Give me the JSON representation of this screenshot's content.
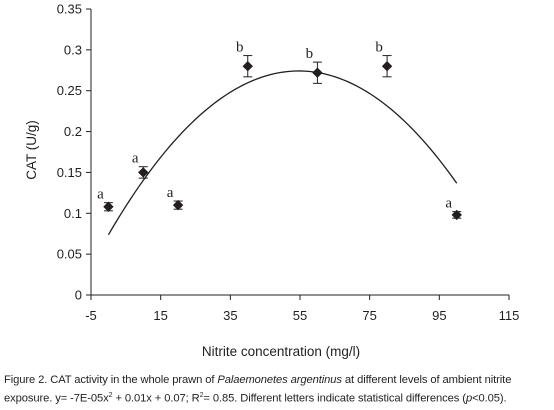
{
  "chart_data": {
    "type": "scatter",
    "xlabel": "Nitrite concentration (mg/l)",
    "ylabel": "CAT (U/g)",
    "xlim": [
      -5,
      115
    ],
    "ylim": [
      0,
      0.35
    ],
    "xticks": [
      "-5",
      "15",
      "35",
      "55",
      "75",
      "95",
      "115"
    ],
    "yticks": [
      "0",
      "0.05",
      "0.1",
      "0.15",
      "0.2",
      "0.25",
      "0.3",
      "0.35"
    ],
    "points": [
      {
        "x": 0,
        "y": 0.108,
        "err": 0.005,
        "label": "a"
      },
      {
        "x": 10,
        "y": 0.15,
        "err": 0.007,
        "label": "a"
      },
      {
        "x": 20,
        "y": 0.11,
        "err": 0.005,
        "label": "a"
      },
      {
        "x": 40,
        "y": 0.28,
        "err": 0.013,
        "label": "b"
      },
      {
        "x": 60,
        "y": 0.272,
        "err": 0.013,
        "label": "b"
      },
      {
        "x": 80,
        "y": 0.28,
        "err": 0.013,
        "label": "b"
      },
      {
        "x": 100,
        "y": 0.098,
        "err": 0.004,
        "label": "a"
      }
    ],
    "fit": {
      "type": "quadratic",
      "a": -6.7e-05,
      "b": 0.00733,
      "c": 0.0737,
      "x_range": [
        0,
        100
      ]
    },
    "grid": false,
    "legend": "none"
  },
  "caption": {
    "part1": "Figure 2. CAT activity in the whole prawn of ",
    "species": "Palaemonetes argentinus",
    "part2": " at different levels of ambient nitrite exposure. y= -7E-05x",
    "sup": "2",
    "part3": " + 0.01x + 0.07; R",
    "part4": "= 0.85. Different letters indicate statistical differences (",
    "p": "p",
    "part5": "<0.05)."
  }
}
